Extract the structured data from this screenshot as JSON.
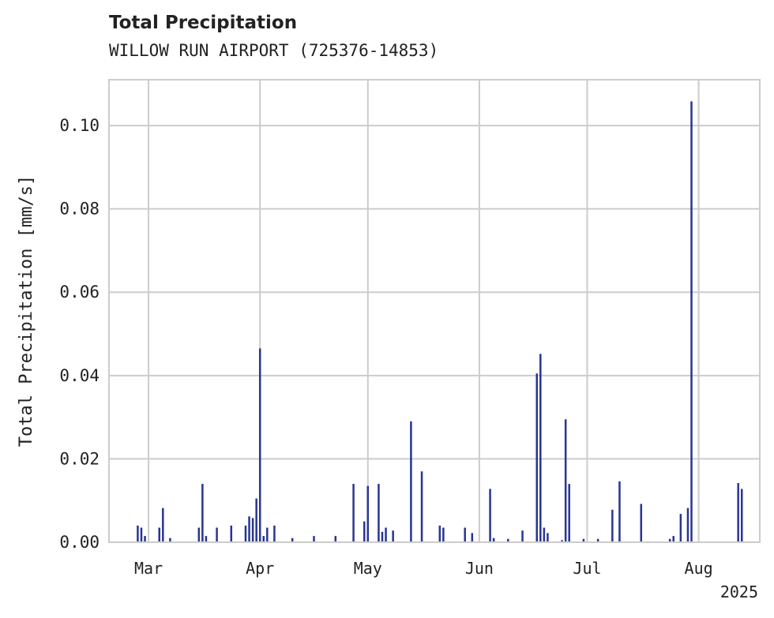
{
  "chart_data": {
    "type": "bar",
    "title": "Total Precipitation",
    "subtitle": "WILLOW RUN AIRPORT (725376-14853)",
    "xlabel": "",
    "ylabel": "Total Precipitation [mm/s]",
    "year_label": "2025",
    "x_tick_labels": [
      "Mar",
      "Apr",
      "May",
      "Jun",
      "Jul",
      "Aug"
    ],
    "x_ticks": [
      "2025-03-01",
      "2025-04-01",
      "2025-05-01",
      "2025-06-01",
      "2025-07-01",
      "2025-08-01"
    ],
    "xlim": [
      "2025-02-18",
      "2025-08-18"
    ],
    "y_tick_labels": [
      "0.00",
      "0.02",
      "0.04",
      "0.06",
      "0.08",
      "0.10"
    ],
    "ylim": [
      0,
      0.111
    ],
    "grid": true,
    "colors": {
      "bars": "#283593",
      "grid": "#cccccc",
      "frame": "#cccccc",
      "text": "#222222"
    },
    "x": [
      "2025-02-26",
      "2025-02-27",
      "2025-02-28",
      "2025-03-04",
      "2025-03-05",
      "2025-03-07",
      "2025-03-15",
      "2025-03-16",
      "2025-03-17",
      "2025-03-20",
      "2025-03-24",
      "2025-03-28",
      "2025-03-29",
      "2025-03-30",
      "2025-03-31",
      "2025-04-01",
      "2025-04-02",
      "2025-04-03",
      "2025-04-05",
      "2025-04-10",
      "2025-04-16",
      "2025-04-22",
      "2025-04-27",
      "2025-04-30",
      "2025-05-01",
      "2025-05-04",
      "2025-05-05",
      "2025-05-06",
      "2025-05-08",
      "2025-05-13",
      "2025-05-16",
      "2025-05-21",
      "2025-05-22",
      "2025-05-28",
      "2025-05-30",
      "2025-06-04",
      "2025-06-05",
      "2025-06-09",
      "2025-06-13",
      "2025-06-17",
      "2025-06-18",
      "2025-06-19",
      "2025-06-20",
      "2025-06-24",
      "2025-06-25",
      "2025-06-26",
      "2025-06-30",
      "2025-07-04",
      "2025-07-08",
      "2025-07-10",
      "2025-07-16",
      "2025-07-24",
      "2025-07-25",
      "2025-07-27",
      "2025-07-29",
      "2025-07-30",
      "2025-08-12",
      "2025-08-13"
    ],
    "values": [
      0.004,
      0.0035,
      0.0015,
      0.0035,
      0.0082,
      0.001,
      0.0035,
      0.014,
      0.0015,
      0.0035,
      0.004,
      0.004,
      0.0062,
      0.0058,
      0.0105,
      0.0465,
      0.0015,
      0.0035,
      0.004,
      0.001,
      0.0015,
      0.0015,
      0.014,
      0.005,
      0.0135,
      0.014,
      0.0025,
      0.0035,
      0.0028,
      0.029,
      0.017,
      0.004,
      0.0035,
      0.0035,
      0.0022,
      0.0128,
      0.001,
      0.0008,
      0.0028,
      0.0405,
      0.0452,
      0.0035,
      0.0022,
      0.0005,
      0.0295,
      0.014,
      0.0008,
      0.0008,
      0.0078,
      0.0146,
      0.0092,
      0.0008,
      0.0015,
      0.0068,
      0.0082,
      0.1058,
      0.0142,
      0.0128
    ]
  }
}
